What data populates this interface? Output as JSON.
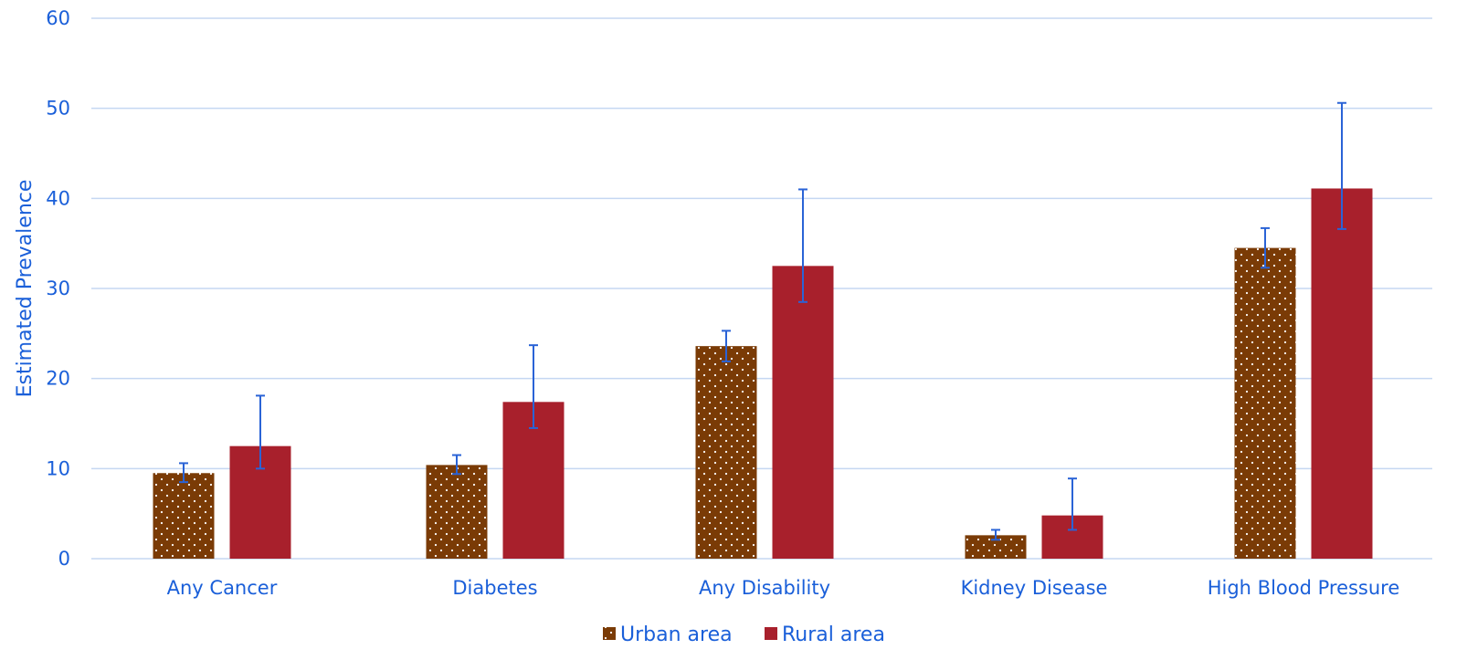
{
  "chart_data": {
    "type": "bar",
    "title": "",
    "xlabel": "",
    "ylabel": "Estimated Prevalence",
    "ylim": [
      0,
      60
    ],
    "yticks": [
      0,
      10,
      20,
      30,
      40,
      50,
      60
    ],
    "grid": true,
    "legend_position": "bottom-center",
    "categories": [
      "Any Cancer",
      "Diabetes",
      "Any Disability",
      "Kidney Disease",
      "High Blood Pressure"
    ],
    "series": [
      {
        "name": "Urban area",
        "color": "#7a3b06",
        "pattern": "dotted",
        "values": [
          9.5,
          10.4,
          23.6,
          2.6,
          34.5
        ],
        "error_low": [
          8.5,
          9.4,
          21.9,
          2.1,
          32.3
        ],
        "error_high": [
          10.6,
          11.5,
          25.3,
          3.2,
          36.7
        ]
      },
      {
        "name": "Rural area",
        "color": "#a8202c",
        "pattern": "solid",
        "values": [
          12.5,
          17.4,
          32.5,
          4.8,
          41.1
        ],
        "error_low": [
          10.0,
          14.5,
          28.5,
          3.2,
          36.6
        ],
        "error_high": [
          18.1,
          23.7,
          41.0,
          8.9,
          50.6
        ]
      }
    ]
  }
}
